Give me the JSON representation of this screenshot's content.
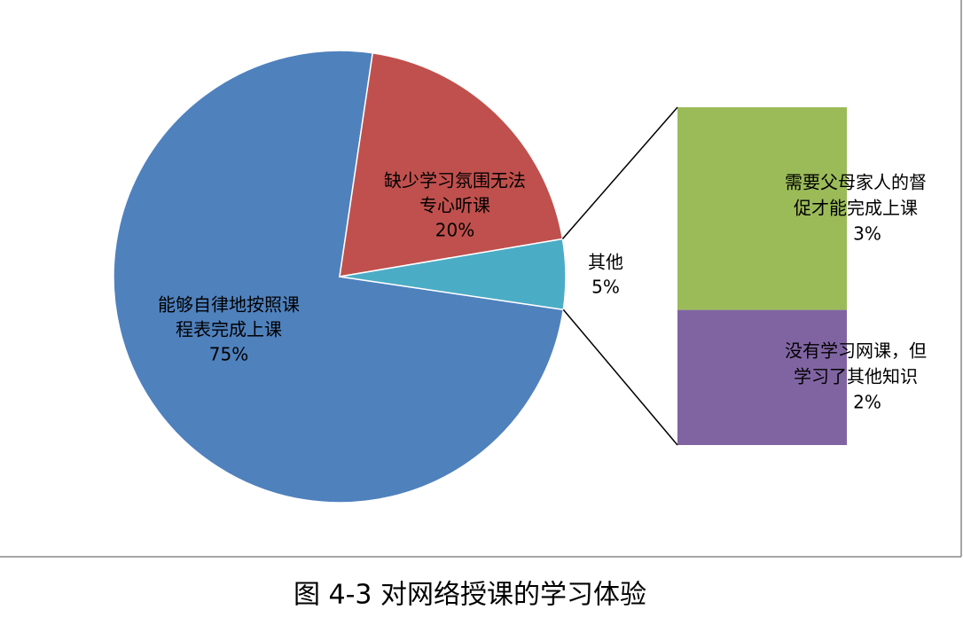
{
  "chart_data": {
    "type": "pie-of-bar",
    "categories": [
      [
        "能够自律地按照课",
        "程表完成上课"
      ],
      [
        "缺少学习氛围无法",
        "专心听课"
      ],
      [
        "其他"
      ]
    ],
    "values": [
      75,
      20,
      5
    ],
    "value_labels": [
      "75%",
      "20%",
      "5%"
    ],
    "colors": [
      "#4f81bd",
      "#c0504d",
      "#4bacc6"
    ],
    "breakout": {
      "categories": [
        [
          "需要父母家人的督",
          "促才能完成上课"
        ],
        [
          "没有学习网课，但",
          "学习了其他知识"
        ]
      ],
      "values": [
        3,
        2
      ],
      "value_labels": [
        "3%",
        "2%"
      ],
      "colors": [
        "#9bbb59",
        "#8064a2"
      ]
    },
    "caption": "图 4-3 对网络授课的学习体验"
  }
}
